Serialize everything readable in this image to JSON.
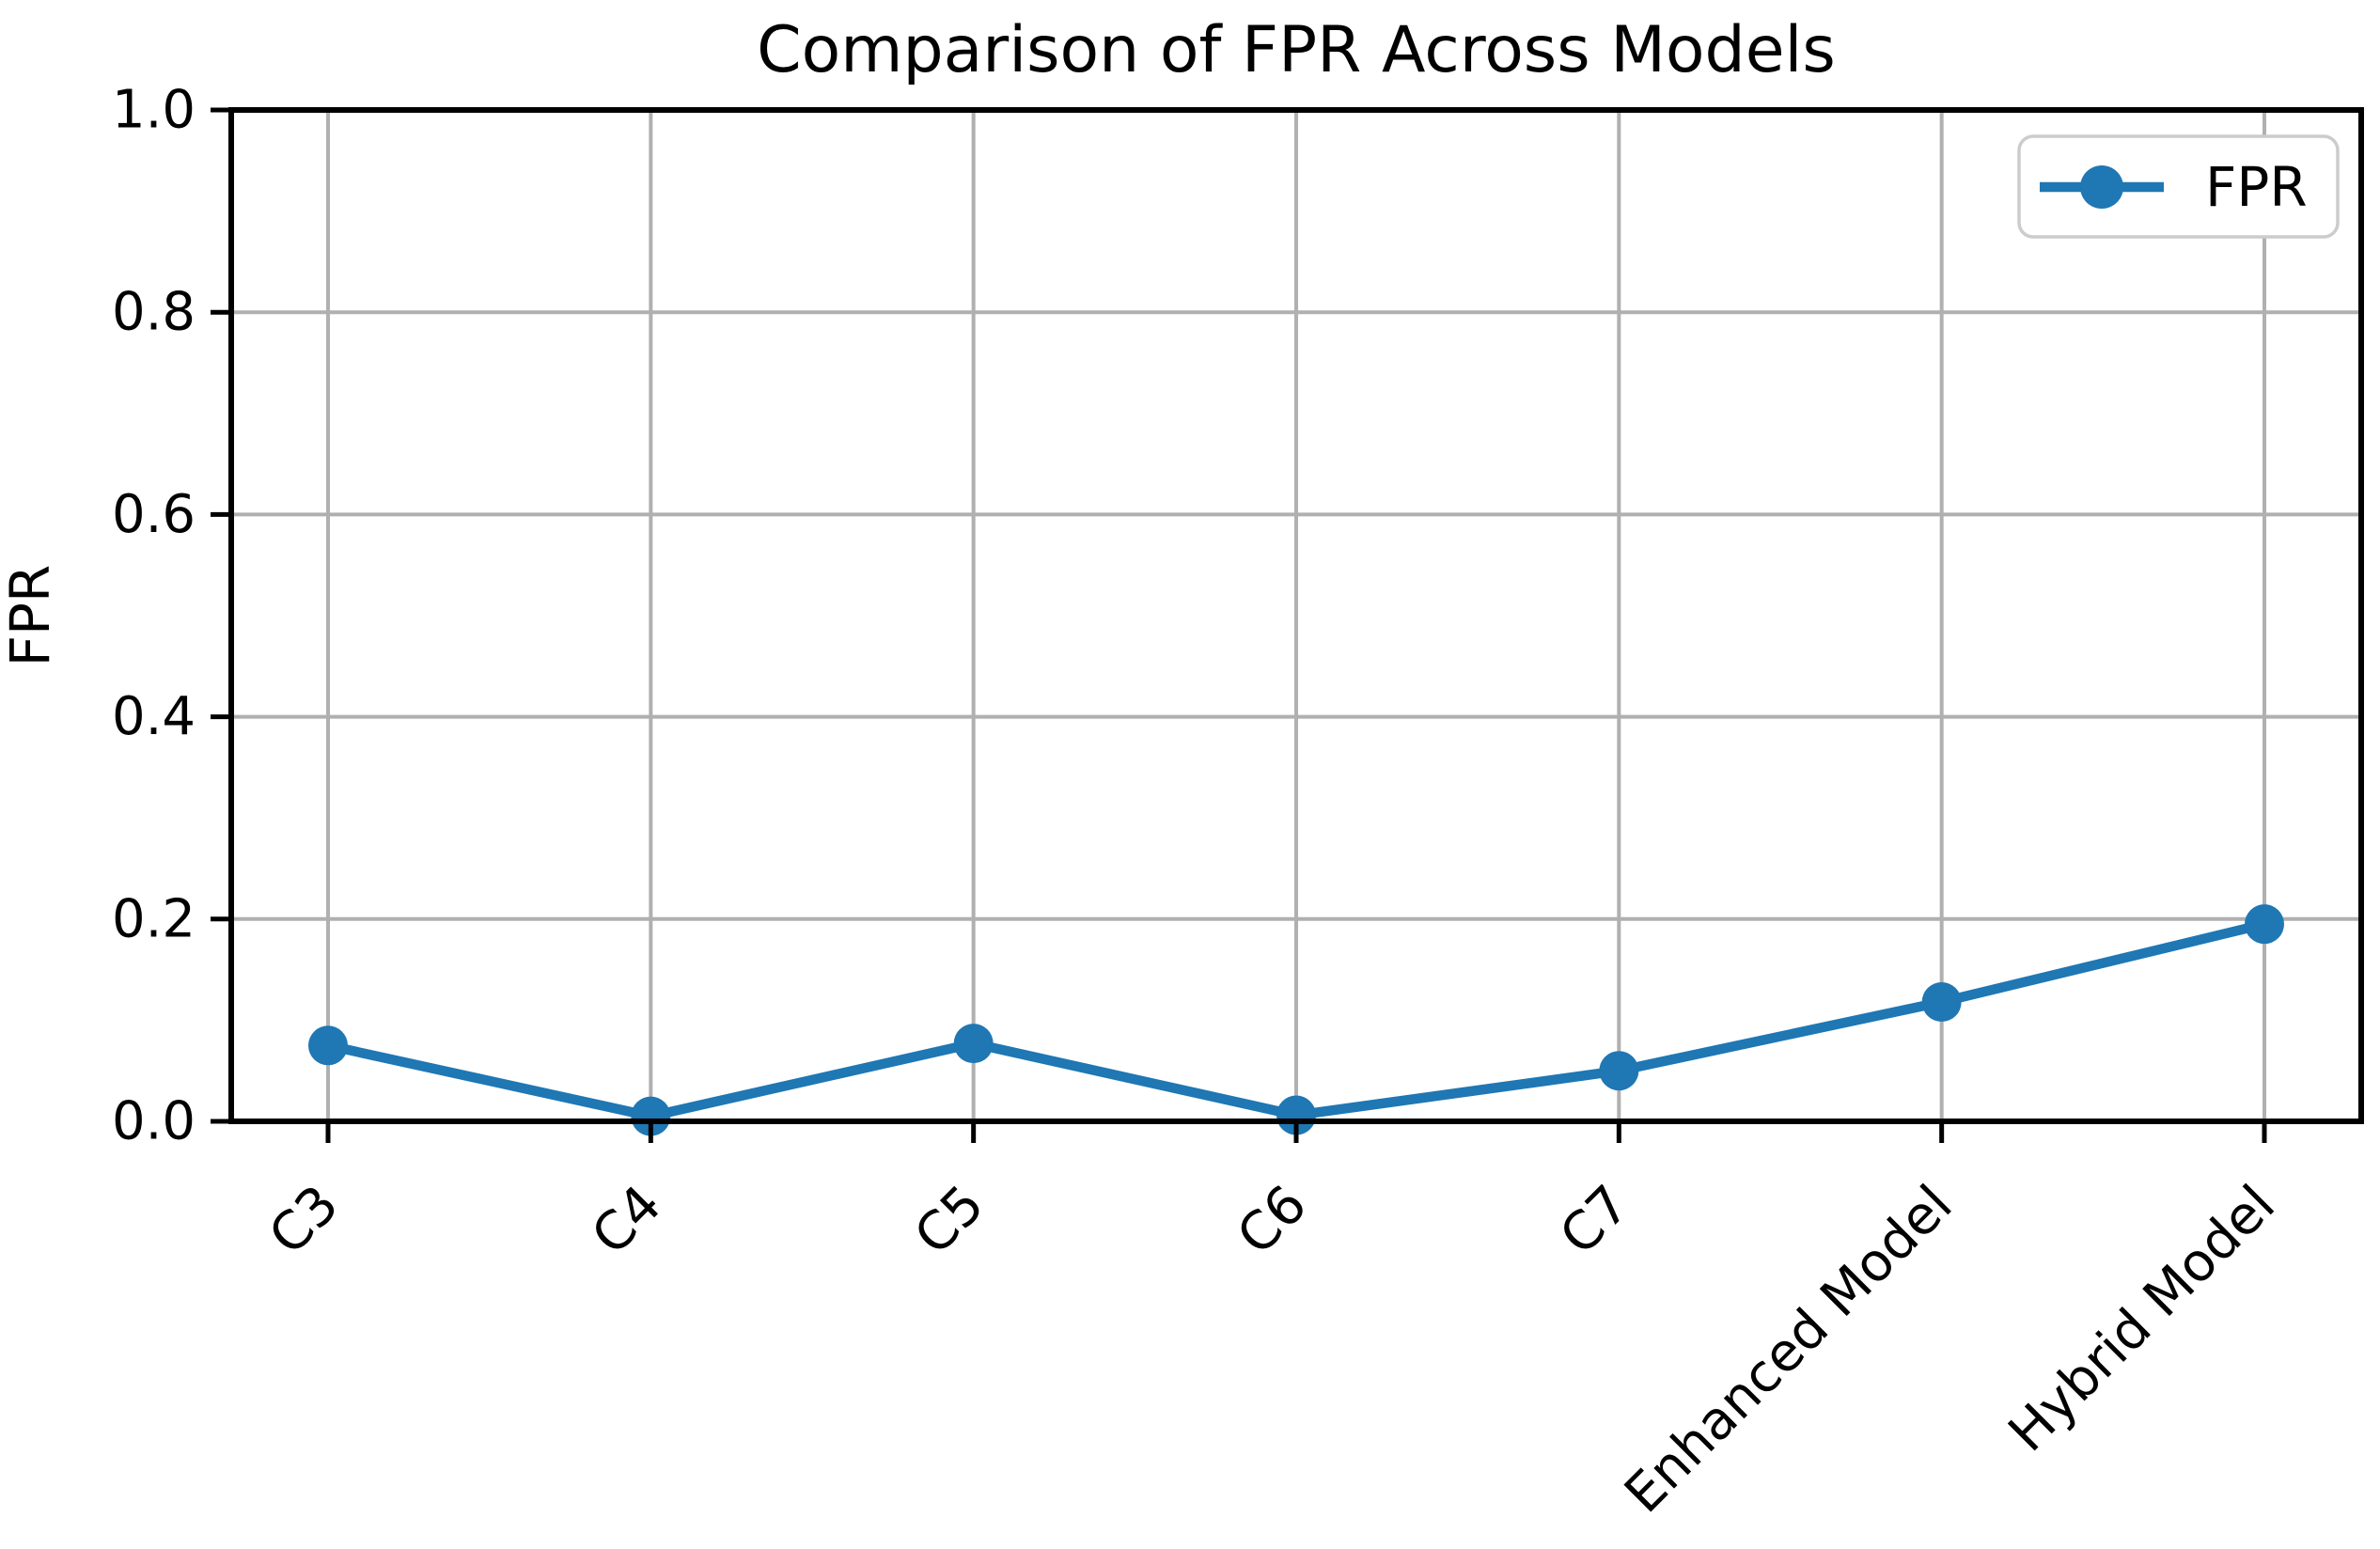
{
  "chart_data": {
    "type": "line",
    "title": "Comparison of FPR Across Models",
    "xlabel": "",
    "ylabel": "FPR",
    "categories": [
      "C3",
      "C4",
      "C5",
      "C6",
      "C7",
      "Enhanced Model",
      "Hybrid Model"
    ],
    "series": [
      {
        "name": "FPR",
        "values": [
          0.075,
          0.005,
          0.077,
          0.006,
          0.05,
          0.118,
          0.195
        ]
      }
    ],
    "ylim": [
      0.0,
      1.0
    ],
    "ytick_values": [
      0.0,
      0.2,
      0.4,
      0.6,
      0.8,
      1.0
    ],
    "ytick_labels": [
      "0.0",
      "0.2",
      "0.4",
      "0.6",
      "0.8",
      "1.0"
    ],
    "x_tick_rotation_deg": 45,
    "grid": true,
    "legend": {
      "position": "upper right",
      "entries": [
        "FPR"
      ]
    },
    "marker": "circle",
    "colors": {
      "line": "#1f77b4",
      "grid": "#b0b0b0",
      "spine": "#000000",
      "text": "#000000",
      "legend_border": "#cccccc",
      "background": "#ffffff"
    }
  }
}
